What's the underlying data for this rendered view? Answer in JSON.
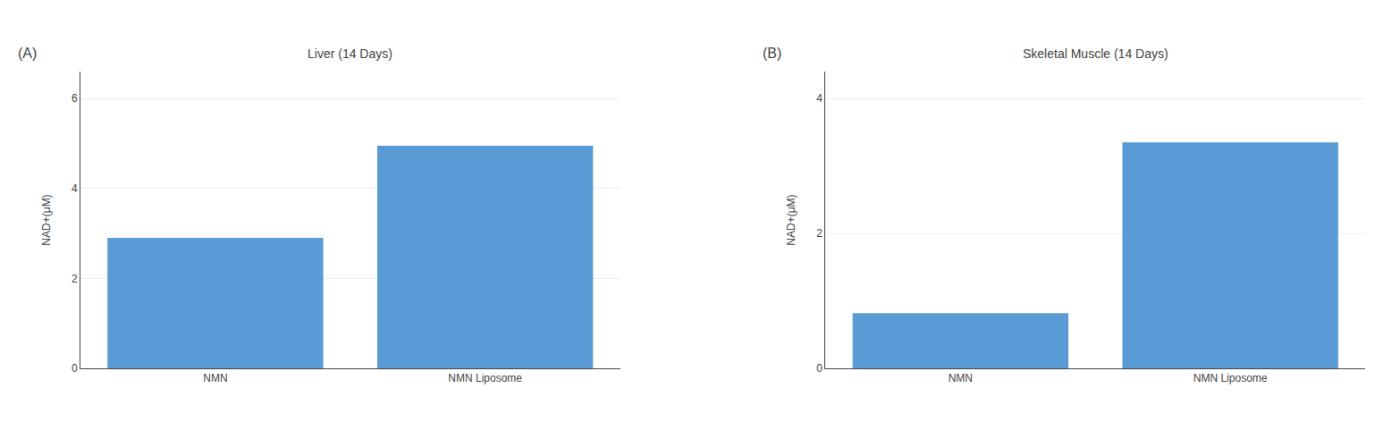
{
  "chart_data": [
    {
      "type": "bar",
      "title": "Liver (14 Days)",
      "annotations": [
        "(A)"
      ],
      "categories": [
        "NMN",
        "NMN Liposome"
      ],
      "values": [
        2.9,
        4.95
      ],
      "color": "#5B9BD5",
      "ylabel": "NAD+(μM)",
      "ylim": [
        0,
        6.6
      ],
      "yticks": [
        0,
        2,
        4,
        6
      ],
      "grid": true
    },
    {
      "type": "bar",
      "title": "Skeletal Muscle (14 Days)",
      "annotations": [
        "(B)"
      ],
      "categories": [
        "NMN",
        "NMN Liposome"
      ],
      "values": [
        0.82,
        3.35
      ],
      "color": "#5B9BD5",
      "ylabel": "NAD+(μM)",
      "ylim": [
        0,
        4.4
      ],
      "yticks": [
        0,
        2,
        4
      ],
      "grid": true
    }
  ]
}
